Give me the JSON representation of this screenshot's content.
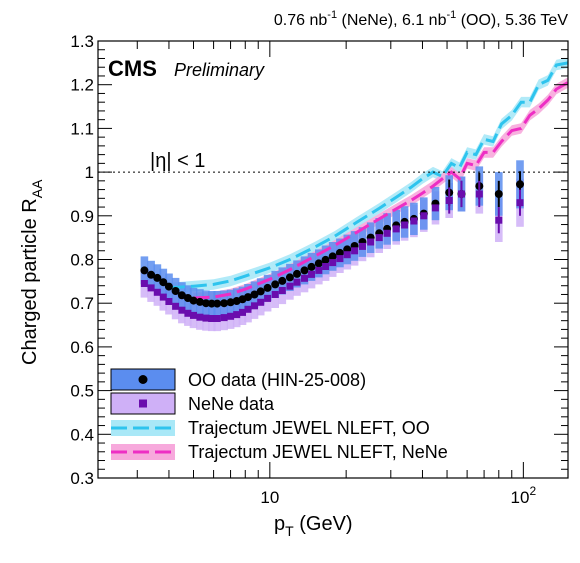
{
  "chart_data": {
    "type": "scatter",
    "header": {
      "lumi_nene_value": "0.76 nb",
      "lumi_nene_exp": "-1",
      "lumi_nene_tag": " (NeNe), ",
      "lumi_oo_value": "6.1 nb",
      "lumi_oo_exp": "-1",
      "lumi_oo_tag": " (OO), 5.36 TeV"
    },
    "experiment": "CMS",
    "status": "Preliminary",
    "selection": "|η| < 1",
    "xlabel": {
      "main": "p",
      "sub": "T",
      "unit": " (GeV)"
    },
    "ylabel": {
      "main": "Charged particle R",
      "sub": "AA"
    },
    "xscale": "log",
    "xlim": [
      2.1,
      150
    ],
    "ylim": [
      0.3,
      1.3
    ],
    "yticks": [
      "0.3",
      "0.4",
      "0.5",
      "0.6",
      "0.7",
      "0.8",
      "0.9",
      "1",
      "1.1",
      "1.2",
      "1.3"
    ],
    "xtick_labels": [
      {
        "value": 10,
        "base": "10",
        "exp": ""
      },
      {
        "value": 100,
        "base": "10",
        "exp": "2"
      }
    ],
    "reference_line": {
      "y": 1,
      "style": "dotted"
    },
    "legend_position": "bottom-left",
    "legend": [
      {
        "label": "OO data (HIN-25-008)",
        "kind": "data-box",
        "fill": "#5b8def",
        "marker": "circle"
      },
      {
        "label": "NeNe data",
        "kind": "data-box",
        "fill": "#cfb0f7",
        "marker": "square"
      },
      {
        "label": "Trajectum JEWEL NLEFT, OO",
        "kind": "model-band",
        "fill": "#a9e8f7",
        "line": "#2ec4ee"
      },
      {
        "label": "Trajectum JEWEL NLEFT, NeNe",
        "kind": "model-band",
        "fill": "#f7a9dc",
        "line": "#ee2ec4"
      }
    ],
    "series": [
      {
        "name": "OO data (HIN-25-008)",
        "marker": "circle",
        "marker_color": "#000000",
        "box_color": "#5b8def",
        "points": [
          {
            "x": 3.2,
            "y": 0.775,
            "sys": 0.032
          },
          {
            "x": 3.4,
            "y": 0.765,
            "sys": 0.032
          },
          {
            "x": 3.6,
            "y": 0.758,
            "sys": 0.031
          },
          {
            "x": 3.8,
            "y": 0.748,
            "sys": 0.031
          },
          {
            "x": 4.0,
            "y": 0.738,
            "sys": 0.03
          },
          {
            "x": 4.25,
            "y": 0.728,
            "sys": 0.03
          },
          {
            "x": 4.5,
            "y": 0.718,
            "sys": 0.03
          },
          {
            "x": 4.75,
            "y": 0.712,
            "sys": 0.029
          },
          {
            "x": 5.0,
            "y": 0.706,
            "sys": 0.029
          },
          {
            "x": 5.3,
            "y": 0.703,
            "sys": 0.029
          },
          {
            "x": 5.6,
            "y": 0.7,
            "sys": 0.029
          },
          {
            "x": 5.9,
            "y": 0.699,
            "sys": 0.029
          },
          {
            "x": 6.2,
            "y": 0.699,
            "sys": 0.029
          },
          {
            "x": 6.6,
            "y": 0.7,
            "sys": 0.029
          },
          {
            "x": 7.0,
            "y": 0.702,
            "sys": 0.029
          },
          {
            "x": 7.4,
            "y": 0.705,
            "sys": 0.029
          },
          {
            "x": 7.8,
            "y": 0.709,
            "sys": 0.029
          },
          {
            "x": 8.2,
            "y": 0.714,
            "sys": 0.03
          },
          {
            "x": 8.7,
            "y": 0.72,
            "sys": 0.03
          },
          {
            "x": 9.2,
            "y": 0.727,
            "sys": 0.03
          },
          {
            "x": 9.8,
            "y": 0.735,
            "sys": 0.03
          },
          {
            "x": 10.5,
            "y": 0.743,
            "sys": 0.031
          },
          {
            "x": 11.2,
            "y": 0.751,
            "sys": 0.031
          },
          {
            "x": 12.0,
            "y": 0.759,
            "sys": 0.031
          },
          {
            "x": 12.8,
            "y": 0.767,
            "sys": 0.031
          },
          {
            "x": 13.7,
            "y": 0.775,
            "sys": 0.032
          },
          {
            "x": 14.6,
            "y": 0.783,
            "sys": 0.032
          },
          {
            "x": 15.6,
            "y": 0.791,
            "sys": 0.032
          },
          {
            "x": 16.6,
            "y": 0.799,
            "sys": 0.033
          },
          {
            "x": 17.7,
            "y": 0.807,
            "sys": 0.033
          },
          {
            "x": 18.9,
            "y": 0.815,
            "sys": 0.033
          },
          {
            "x": 20.2,
            "y": 0.823,
            "sys": 0.034
          },
          {
            "x": 21.6,
            "y": 0.831,
            "sys": 0.034
          },
          {
            "x": 23.2,
            "y": 0.84,
            "sys": 0.034
          },
          {
            "x": 25.0,
            "y": 0.85,
            "sys": 0.035
          },
          {
            "x": 27.0,
            "y": 0.86,
            "sys": 0.035
          },
          {
            "x": 29.0,
            "y": 0.87,
            "sys": 0.036
          },
          {
            "x": 31.5,
            "y": 0.878,
            "sys": 0.036
          },
          {
            "x": 34.0,
            "y": 0.886,
            "sys": 0.036
          },
          {
            "x": 37.0,
            "y": 0.893,
            "sys": 0.037
          },
          {
            "x": 40.5,
            "y": 0.905,
            "sys": 0.037
          },
          {
            "x": 45.0,
            "y": 0.928,
            "sys": 0.038
          },
          {
            "x": 51.0,
            "y": 0.953,
            "sys": 0.04
          },
          {
            "x": 57.0,
            "y": 0.95,
            "sys": 0.04
          },
          {
            "x": 67.0,
            "y": 0.968,
            "sys": 0.045
          },
          {
            "x": 80.0,
            "y": 0.95,
            "sys": 0.05
          },
          {
            "x": 97.0,
            "y": 0.972,
            "sys": 0.055
          }
        ]
      },
      {
        "name": "NeNe data",
        "marker": "square",
        "marker_color": "#6a0dad",
        "box_color": "#cfb0f7",
        "points": [
          {
            "x": 3.2,
            "y": 0.745,
            "sys": 0.032
          },
          {
            "x": 3.4,
            "y": 0.735,
            "sys": 0.032
          },
          {
            "x": 3.6,
            "y": 0.725,
            "sys": 0.031
          },
          {
            "x": 3.8,
            "y": 0.714,
            "sys": 0.031
          },
          {
            "x": 4.0,
            "y": 0.704,
            "sys": 0.03
          },
          {
            "x": 4.25,
            "y": 0.693,
            "sys": 0.03
          },
          {
            "x": 4.5,
            "y": 0.684,
            "sys": 0.03
          },
          {
            "x": 4.75,
            "y": 0.677,
            "sys": 0.029
          },
          {
            "x": 5.0,
            "y": 0.672,
            "sys": 0.029
          },
          {
            "x": 5.3,
            "y": 0.668,
            "sys": 0.029
          },
          {
            "x": 5.6,
            "y": 0.666,
            "sys": 0.029
          },
          {
            "x": 5.9,
            "y": 0.665,
            "sys": 0.029
          },
          {
            "x": 6.2,
            "y": 0.665,
            "sys": 0.029
          },
          {
            "x": 6.6,
            "y": 0.667,
            "sys": 0.029
          },
          {
            "x": 7.0,
            "y": 0.67,
            "sys": 0.029
          },
          {
            "x": 7.4,
            "y": 0.674,
            "sys": 0.029
          },
          {
            "x": 7.8,
            "y": 0.679,
            "sys": 0.029
          },
          {
            "x": 8.2,
            "y": 0.686,
            "sys": 0.03
          },
          {
            "x": 8.7,
            "y": 0.694,
            "sys": 0.03
          },
          {
            "x": 9.2,
            "y": 0.702,
            "sys": 0.03
          },
          {
            "x": 9.8,
            "y": 0.711,
            "sys": 0.03
          },
          {
            "x": 10.5,
            "y": 0.72,
            "sys": 0.031
          },
          {
            "x": 11.2,
            "y": 0.729,
            "sys": 0.031
          },
          {
            "x": 12.0,
            "y": 0.739,
            "sys": 0.031
          },
          {
            "x": 12.8,
            "y": 0.748,
            "sys": 0.031
          },
          {
            "x": 13.7,
            "y": 0.757,
            "sys": 0.032
          },
          {
            "x": 14.6,
            "y": 0.766,
            "sys": 0.032
          },
          {
            "x": 15.6,
            "y": 0.775,
            "sys": 0.032
          },
          {
            "x": 16.6,
            "y": 0.784,
            "sys": 0.033
          },
          {
            "x": 17.7,
            "y": 0.793,
            "sys": 0.033
          },
          {
            "x": 18.9,
            "y": 0.802,
            "sys": 0.033
          },
          {
            "x": 20.2,
            "y": 0.811,
            "sys": 0.034
          },
          {
            "x": 21.6,
            "y": 0.82,
            "sys": 0.034
          },
          {
            "x": 23.2,
            "y": 0.83,
            "sys": 0.034
          },
          {
            "x": 25.0,
            "y": 0.84,
            "sys": 0.035
          },
          {
            "x": 27.0,
            "y": 0.85,
            "sys": 0.035
          },
          {
            "x": 29.0,
            "y": 0.86,
            "sys": 0.036
          },
          {
            "x": 31.5,
            "y": 0.87,
            "sys": 0.036
          },
          {
            "x": 34.0,
            "y": 0.879,
            "sys": 0.036
          },
          {
            "x": 37.0,
            "y": 0.888,
            "sys": 0.037
          },
          {
            "x": 40.5,
            "y": 0.9,
            "sys": 0.037
          },
          {
            "x": 45.0,
            "y": 0.918,
            "sys": 0.038
          },
          {
            "x": 51.0,
            "y": 0.935,
            "sys": 0.04
          },
          {
            "x": 57.0,
            "y": 0.95,
            "sys": 0.04
          },
          {
            "x": 67.0,
            "y": 0.95,
            "sys": 0.045
          },
          {
            "x": 80.0,
            "y": 0.89,
            "sys": 0.05
          },
          {
            "x": 97.0,
            "y": 0.93,
            "sys": 0.055
          }
        ]
      },
      {
        "name": "Trajectum JEWEL NLEFT, OO",
        "kind": "model",
        "line_color": "#2ec4ee",
        "band_color": "#a9e8f7",
        "band_half_width": 0.012,
        "points": [
          {
            "x": 4.0,
            "y": 0.735
          },
          {
            "x": 4.5,
            "y": 0.737
          },
          {
            "x": 5.0,
            "y": 0.739
          },
          {
            "x": 6.0,
            "y": 0.743
          },
          {
            "x": 7.0,
            "y": 0.751
          },
          {
            "x": 8.0,
            "y": 0.762
          },
          {
            "x": 10.0,
            "y": 0.781
          },
          {
            "x": 12.0,
            "y": 0.8
          },
          {
            "x": 15.0,
            "y": 0.828
          },
          {
            "x": 18.0,
            "y": 0.853
          },
          {
            "x": 22.0,
            "y": 0.885
          },
          {
            "x": 27.0,
            "y": 0.917
          },
          {
            "x": 32.0,
            "y": 0.945
          },
          {
            "x": 36.0,
            "y": 0.965
          },
          {
            "x": 40.0,
            "y": 0.985
          },
          {
            "x": 44.0,
            "y": 1.0
          },
          {
            "x": 48.0,
            "y": 0.99
          },
          {
            "x": 52.0,
            "y": 1.02
          },
          {
            "x": 56.0,
            "y": 1.01
          },
          {
            "x": 60.0,
            "y": 1.045
          },
          {
            "x": 65.0,
            "y": 1.04
          },
          {
            "x": 70.0,
            "y": 1.075
          },
          {
            "x": 76.0,
            "y": 1.07
          },
          {
            "x": 82.0,
            "y": 1.11
          },
          {
            "x": 90.0,
            "y": 1.13
          },
          {
            "x": 98.0,
            "y": 1.16
          },
          {
            "x": 106.0,
            "y": 1.16
          },
          {
            "x": 115.0,
            "y": 1.2
          },
          {
            "x": 125.0,
            "y": 1.21
          },
          {
            "x": 135.0,
            "y": 1.245
          },
          {
            "x": 150.0,
            "y": 1.25
          }
        ]
      },
      {
        "name": "Trajectum JEWEL NLEFT, NeNe",
        "kind": "model",
        "line_color": "#ee2ec4",
        "band_color": "#f7a9dc",
        "band_half_width": 0.012,
        "points": [
          {
            "x": 5.0,
            "y": 0.712
          },
          {
            "x": 6.0,
            "y": 0.714
          },
          {
            "x": 7.0,
            "y": 0.721
          },
          {
            "x": 8.0,
            "y": 0.732
          },
          {
            "x": 10.0,
            "y": 0.755
          },
          {
            "x": 12.0,
            "y": 0.777
          },
          {
            "x": 15.0,
            "y": 0.807
          },
          {
            "x": 18.0,
            "y": 0.832
          },
          {
            "x": 22.0,
            "y": 0.862
          },
          {
            "x": 27.0,
            "y": 0.893
          },
          {
            "x": 32.0,
            "y": 0.918
          },
          {
            "x": 36.0,
            "y": 0.935
          },
          {
            "x": 40.0,
            "y": 0.952
          },
          {
            "x": 44.0,
            "y": 0.968
          },
          {
            "x": 48.0,
            "y": 0.985
          },
          {
            "x": 52.0,
            "y": 1.0
          },
          {
            "x": 56.0,
            "y": 0.985
          },
          {
            "x": 60.0,
            "y": 1.02
          },
          {
            "x": 65.0,
            "y": 1.015
          },
          {
            "x": 70.0,
            "y": 1.045
          },
          {
            "x": 76.0,
            "y": 1.045
          },
          {
            "x": 82.0,
            "y": 1.07
          },
          {
            "x": 90.0,
            "y": 1.095
          },
          {
            "x": 98.0,
            "y": 1.1
          },
          {
            "x": 106.0,
            "y": 1.13
          },
          {
            "x": 115.0,
            "y": 1.145
          },
          {
            "x": 125.0,
            "y": 1.165
          },
          {
            "x": 135.0,
            "y": 1.19
          },
          {
            "x": 150.0,
            "y": 1.205
          }
        ]
      }
    ]
  }
}
